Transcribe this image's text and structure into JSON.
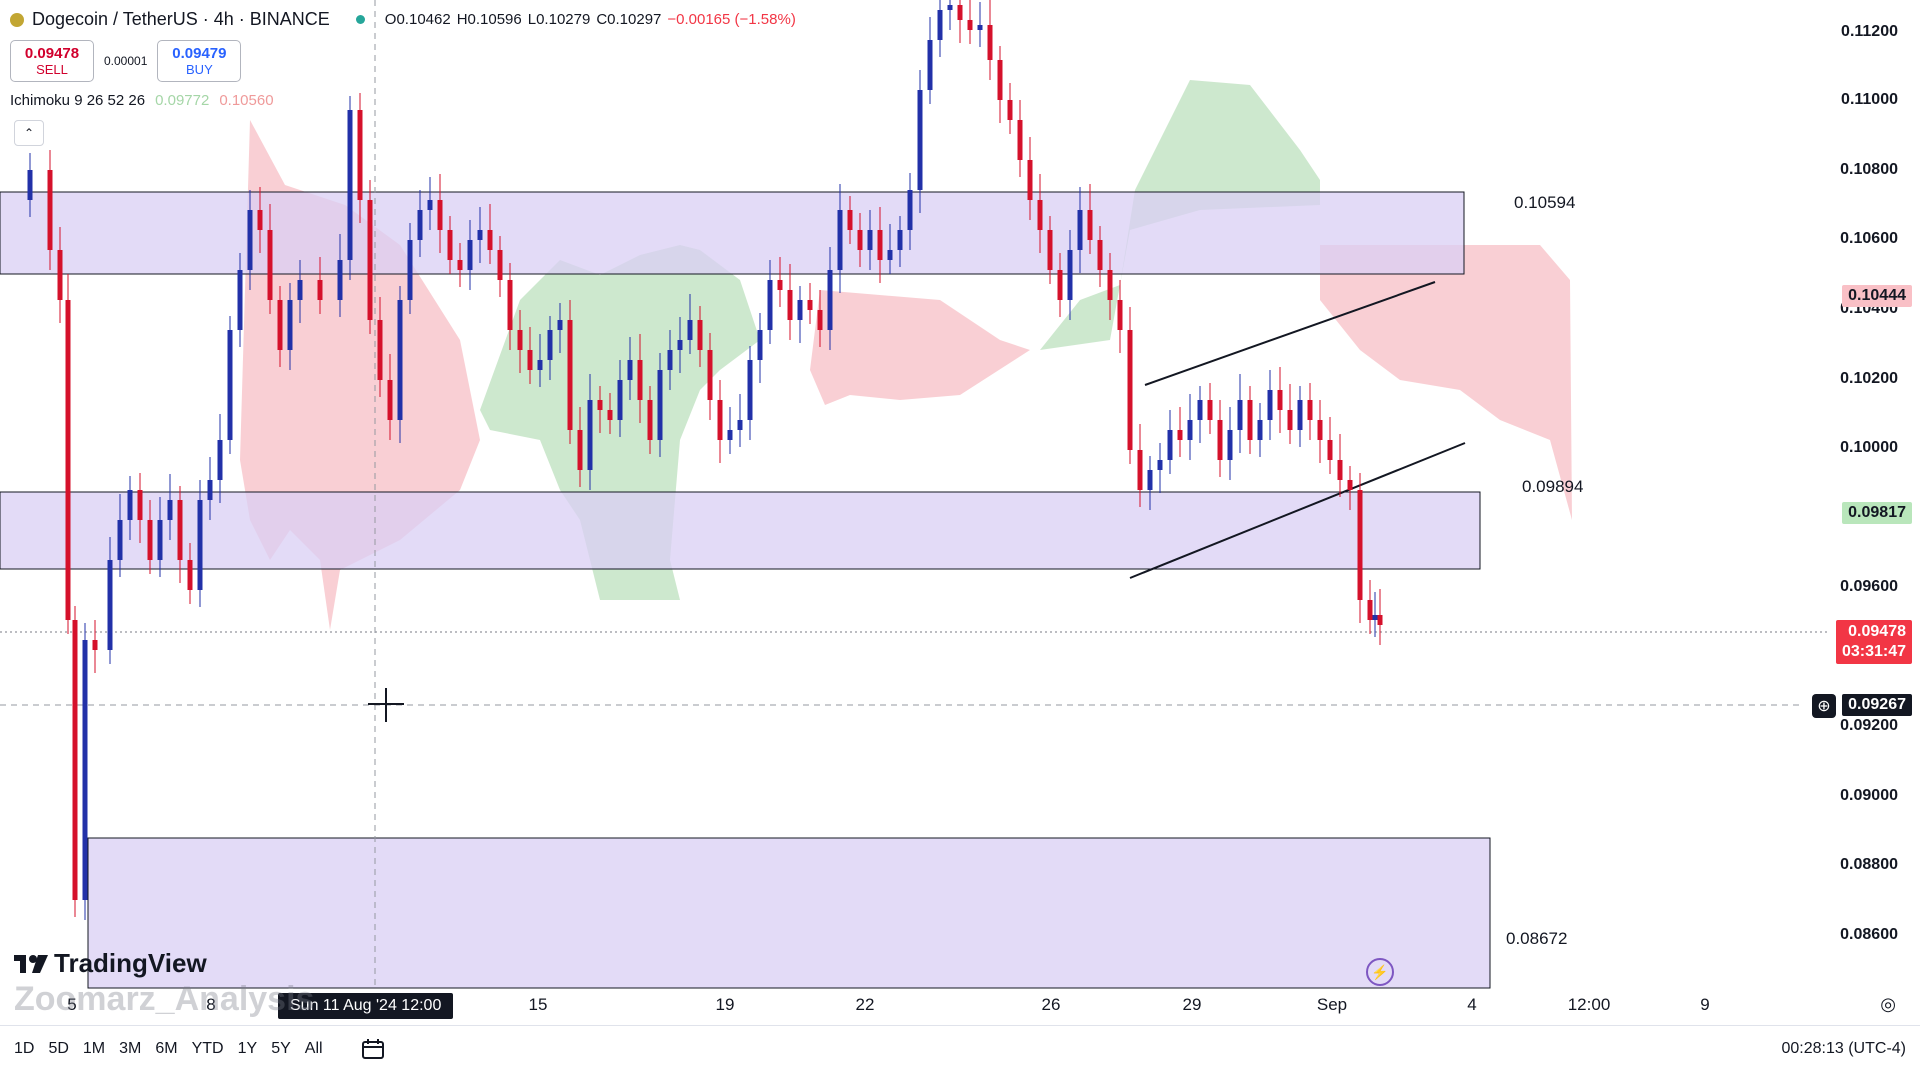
{
  "header": {
    "symbol": "Dogecoin / TetherUS · 4h · BINANCE",
    "ohlc": [
      "O0.10462",
      "H0.10596",
      "L0.10279",
      "C0.10297",
      "−0.00165 (−1.58%)"
    ]
  },
  "trade": {
    "sell_price": "0.09478",
    "sell_label": "SELL",
    "spread": "0.00001",
    "buy_price": "0.09479",
    "buy_label": "BUY"
  },
  "indicator": {
    "name": "Ichimoku 9 26 52 26",
    "value1": "0.09772",
    "value2": "0.10560"
  },
  "zone_labels": [
    "0.10594",
    "0.09894",
    "0.08672"
  ],
  "price_axis": {
    "ticks": [
      "0.11200",
      "0.11000",
      "0.10800",
      "0.10600",
      "0.10400",
      "0.10200",
      "0.10000",
      "0.09600",
      "0.09200",
      "0.09000",
      "0.08800",
      "0.08600"
    ],
    "badge_red": "0.10444",
    "badge_green": "0.09817",
    "current_price": "0.09478",
    "countdown": "03:31:47",
    "crosshair_price": "0.09267"
  },
  "time_axis": {
    "labels": [
      "5",
      "8",
      "15",
      "19",
      "22",
      "26",
      "29",
      "Sep",
      "4",
      "12:00",
      "9"
    ],
    "crosshair_time": "Sun 11 Aug '24   12:00"
  },
  "timeframes": [
    "1D",
    "5D",
    "1M",
    "3M",
    "6M",
    "YTD",
    "1Y",
    "5Y",
    "All"
  ],
  "clock": "00:28:13 (UTC-4)",
  "branding": {
    "logo": "TradingView",
    "watermark": "Zoomarz_Analysis"
  },
  "colors": {
    "up": "#2231a8",
    "down": "#d5112b",
    "zone": "#d9cff4",
    "cloud_green": "#c8e6c9",
    "cloud_red": "#f8c7cc"
  },
  "icons": [
    "dogecoin-icon",
    "market-open-dot-icon",
    "collapse-icon",
    "crosshair-icon",
    "bolt-icon",
    "calendar-icon",
    "settings-icon"
  ]
}
